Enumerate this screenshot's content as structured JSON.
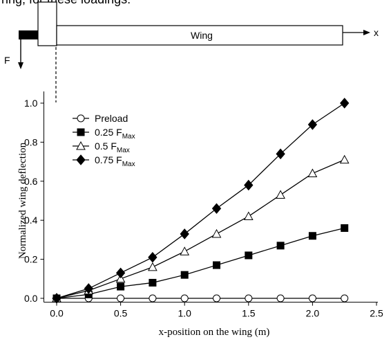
{
  "caption_fragment": "ring, for these loadings:",
  "diagram": {
    "wing_label": "Wing",
    "x_axis_label": "x",
    "force_label": "F"
  },
  "chart_data": {
    "type": "line",
    "xlabel": "x-position on the wing (m)",
    "ylabel": "Normalized wing deflection",
    "xlim": [
      -0.1,
      2.5
    ],
    "ylim": [
      -0.02,
      1.06
    ],
    "xticks": [
      0.0,
      0.5,
      1.0,
      1.5,
      2.0,
      2.5
    ],
    "xtick_labels": [
      "0.0",
      "0.5",
      "1.0",
      "1.5",
      "2.0",
      "2.5"
    ],
    "yticks": [
      0.0,
      0.2,
      0.4,
      0.6,
      0.8,
      1.0
    ],
    "ytick_labels": [
      "0.0",
      "0.2",
      "0.4",
      "0.6",
      "0.8",
      "1.0"
    ],
    "grid": false,
    "legend_position": "top-left",
    "x": [
      0.0,
      0.25,
      0.5,
      0.75,
      1.0,
      1.25,
      1.5,
      1.75,
      2.0,
      2.25
    ],
    "series": [
      {
        "name": "Preload",
        "legend_main": "Preload",
        "legend_sub": "",
        "marker": "circle-open",
        "values": [
          0.0,
          0.0,
          0.0,
          0.0,
          0.0,
          0.0,
          0.0,
          0.0,
          0.0,
          0.0
        ]
      },
      {
        "name": "0.25 F_Max",
        "legend_main": "0.25 F",
        "legend_sub": "Max",
        "marker": "square-filled",
        "values": [
          0.0,
          0.02,
          0.06,
          0.08,
          0.12,
          0.17,
          0.22,
          0.27,
          0.32,
          0.36
        ]
      },
      {
        "name": "0.5 F_Max",
        "legend_main": "0.5   F",
        "legend_sub": "Max",
        "marker": "triangle-open",
        "values": [
          0.0,
          0.04,
          0.1,
          0.16,
          0.24,
          0.33,
          0.42,
          0.53,
          0.64,
          0.71
        ]
      },
      {
        "name": "0.75 F_Max",
        "legend_main": "0.75 F",
        "legend_sub": "Max",
        "marker": "diamond-filled",
        "values": [
          0.0,
          0.05,
          0.13,
          0.21,
          0.33,
          0.46,
          0.58,
          0.74,
          0.89,
          1.0
        ]
      }
    ]
  }
}
